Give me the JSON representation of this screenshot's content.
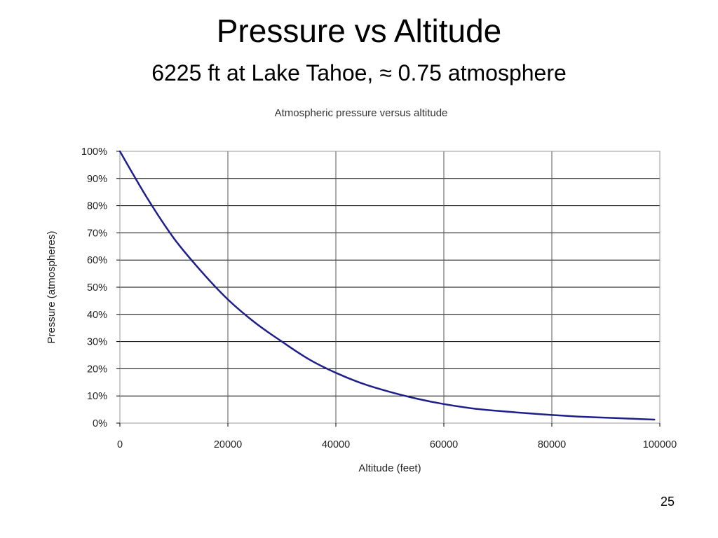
{
  "slide": {
    "title": "Pressure vs Altitude",
    "subtitle": "6225 ft at Lake Tahoe, ≈ 0.75 atmosphere",
    "page_number": "25"
  },
  "chart_data": {
    "type": "line",
    "title": "Atmospheric pressure versus altitude",
    "xlabel": "Altitude (feet)",
    "ylabel": "Pressure (atmospheres)",
    "xlim": [
      0,
      100000
    ],
    "ylim": [
      0,
      1
    ],
    "x_ticks": [
      0,
      20000,
      40000,
      60000,
      80000,
      100000
    ],
    "x_tick_labels": [
      "0",
      "20000",
      "40000",
      "60000",
      "80000",
      "100000"
    ],
    "y_ticks": [
      0,
      0.1,
      0.2,
      0.3,
      0.4,
      0.5,
      0.6,
      0.7,
      0.8,
      0.9,
      1.0
    ],
    "y_tick_labels": [
      "0%",
      "10%",
      "20%",
      "30%",
      "40%",
      "50%",
      "60%",
      "70%",
      "80%",
      "90%",
      "100%"
    ],
    "grid": true,
    "legend": "none",
    "series": [
      {
        "color": "#1f1f8c",
        "x": [
          0,
          5000,
          10000,
          15000,
          20000,
          25000,
          30000,
          35000,
          40000,
          45000,
          50000,
          55000,
          60000,
          65000,
          70000,
          75000,
          80000,
          85000,
          90000,
          95000,
          99000
        ],
        "y": [
          1.0,
          0.83,
          0.68,
          0.56,
          0.455,
          0.37,
          0.3,
          0.235,
          0.185,
          0.145,
          0.115,
          0.09,
          0.07,
          0.055,
          0.045,
          0.037,
          0.03,
          0.024,
          0.02,
          0.016,
          0.013
        ]
      }
    ]
  }
}
